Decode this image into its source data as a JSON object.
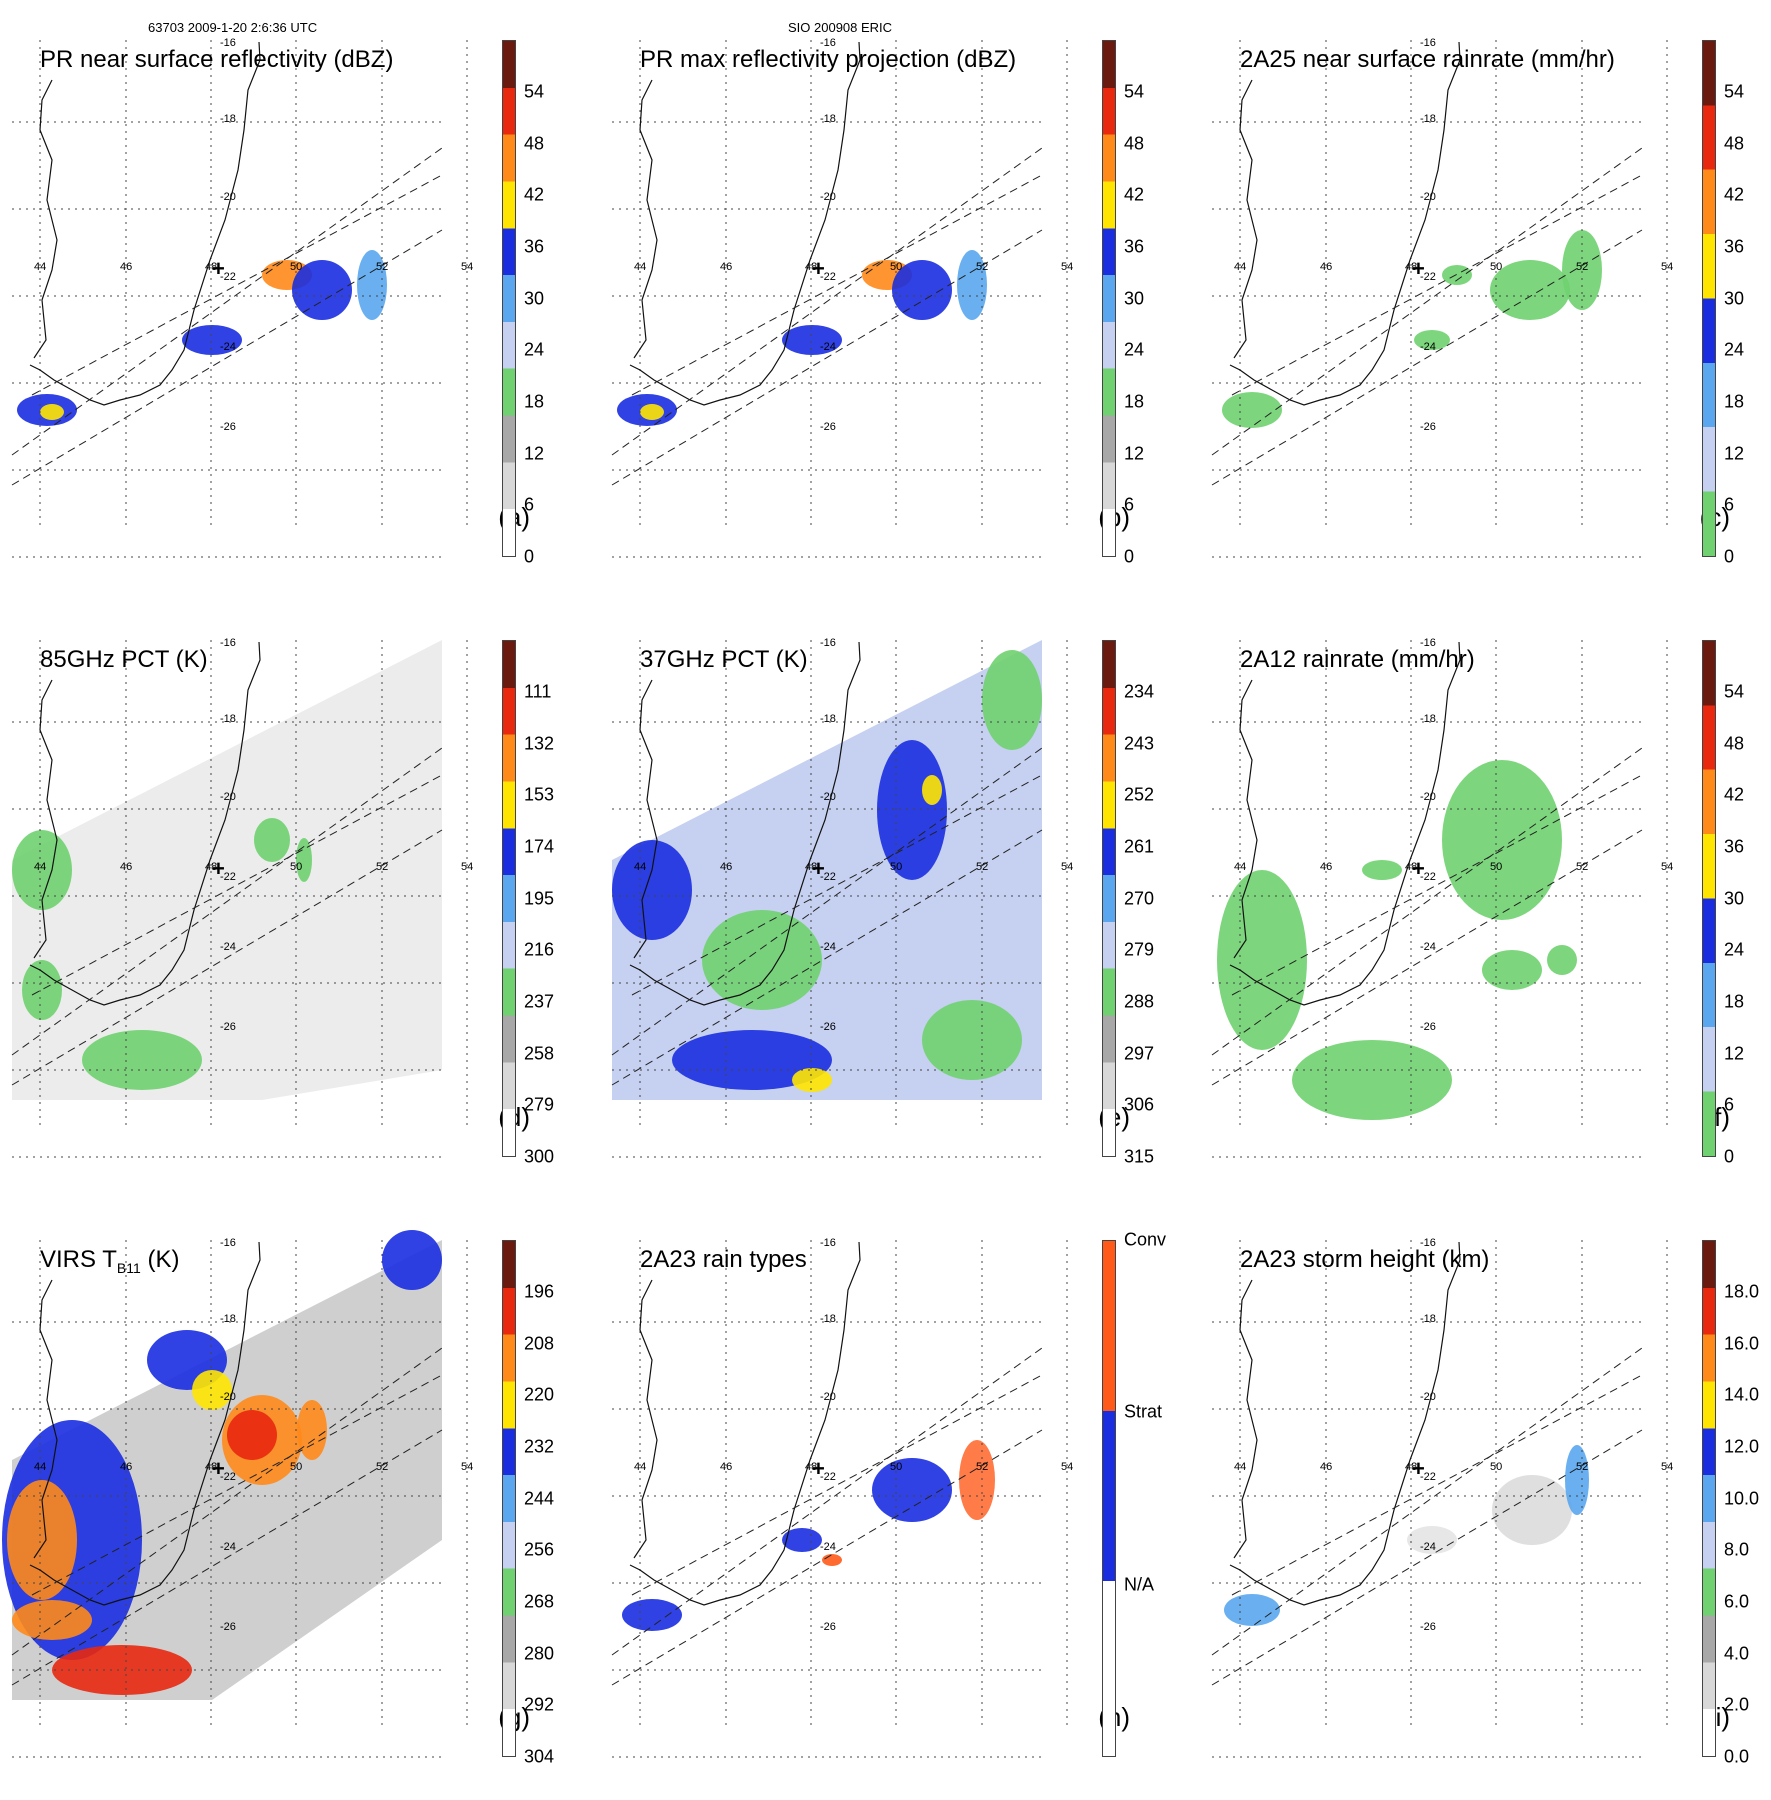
{
  "header": {
    "left": "63703 2009-1-20 2:6:36 UTC",
    "center": "SIO 200908 ERIC"
  },
  "lon_labels": [
    "44",
    "46",
    "48",
    "50",
    "52",
    "54"
  ],
  "lat_labels": [
    "-16",
    "-18",
    "-20",
    "-22",
    "-24",
    "-26"
  ],
  "colors": {
    "blue": "#1a2ee0",
    "lightblue": "#5aa7f0",
    "paleblue": "#c6d0f0",
    "green": "#6fd16f",
    "yellow": "#ffe500",
    "orange": "#ff8a1a",
    "red": "#e8280f",
    "darkred": "#6b1a10",
    "gray": "#b4b4b4"
  },
  "panels": [
    {
      "id": "a",
      "title": "PR near surface reflectivity (dBZ)",
      "label": "(a)",
      "ticks": [
        "54",
        "48",
        "42",
        "36",
        "30",
        "24",
        "18",
        "12",
        "6",
        "0"
      ],
      "bar": "reflect",
      "fill": "swathA"
    },
    {
      "id": "b",
      "title": "PR max reflectivity projection (dBZ)",
      "label": "(b)",
      "ticks": [
        "54",
        "48",
        "42",
        "36",
        "30",
        "24",
        "18",
        "12",
        "6",
        "0"
      ],
      "bar": "reflect",
      "fill": "swathB"
    },
    {
      "id": "c",
      "title": "2A25 near surface rainrate (mm/hr)",
      "label": "(c)",
      "ticks": [
        "54",
        "48",
        "42",
        "36",
        "30",
        "24",
        "18",
        "12",
        "6",
        "0"
      ],
      "bar": "rain",
      "fill": "swathC"
    },
    {
      "id": "d",
      "title": "85GHz PCT (K)",
      "label": "(d)",
      "ticks": [
        "111",
        "132",
        "153",
        "174",
        "195",
        "216",
        "237",
        "258",
        "279",
        "300"
      ],
      "bar": "pct",
      "fill": "pct85"
    },
    {
      "id": "e",
      "title": "37GHz PCT (K)",
      "label": "(e)",
      "ticks": [
        "234",
        "243",
        "252",
        "261",
        "270",
        "279",
        "288",
        "297",
        "306",
        "315"
      ],
      "bar": "pct",
      "fill": "pct37"
    },
    {
      "id": "f",
      "title": "2A12 rainrate (mm/hr)",
      "label": "(f)",
      "ticks": [
        "54",
        "48",
        "42",
        "36",
        "30",
        "24",
        "18",
        "12",
        "6",
        "0"
      ],
      "bar": "rain",
      "fill": "rain12"
    },
    {
      "id": "g",
      "title": "VIRS T",
      "title_sub": "B11",
      "title_tail": " (K)",
      "label": "(g)",
      "ticks": [
        "196",
        "208",
        "220",
        "232",
        "244",
        "256",
        "268",
        "280",
        "292",
        "304"
      ],
      "bar": "pct",
      "fill": "virs"
    },
    {
      "id": "h",
      "title": "2A23 rain types",
      "label": "(h)",
      "ticks": [
        "Conv",
        "Strat",
        "N/A"
      ],
      "bar": "types",
      "fill": "types"
    },
    {
      "id": "i",
      "title": "2A23 storm height (km)",
      "label": "(i)",
      "ticks": [
        "18.0",
        "16.0",
        "14.0",
        "12.0",
        "10.0",
        "8.0",
        "6.0",
        "4.0",
        "2.0",
        "0.0"
      ],
      "bar": "height",
      "fill": "height"
    }
  ]
}
